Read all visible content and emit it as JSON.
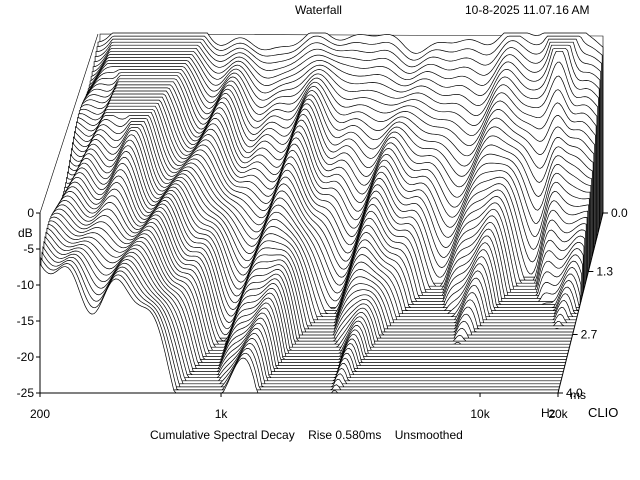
{
  "header": {
    "title": "Waterfall",
    "timestamp": "10-8-2025 11.07.16 AM"
  },
  "footer": {
    "caption": "Cumulative Spectral Decay    Rise 0.580ms    Unsmoothed",
    "brand": "CLIO"
  },
  "colors": {
    "background": "#ffffff",
    "ink": "#000000"
  },
  "chart_data": {
    "type": "area",
    "title": "Waterfall",
    "subtitle": "Cumulative Spectral Decay    Rise 0.580ms    Unsmoothed",
    "xlabel": "Hz",
    "ylabel": "dB",
    "zlabel": "ms",
    "x_scale": "log",
    "xlim": [
      200,
      20000
    ],
    "ylim": [
      -25,
      0
    ],
    "zlim": [
      0,
      4.0
    ],
    "x_ticks": [
      {
        "value": 200,
        "label": "200"
      },
      {
        "value": 1000,
        "label": "1k"
      },
      {
        "value": 10000,
        "label": "10k"
      },
      {
        "value": 20000,
        "label": "20k"
      }
    ],
    "x_unit_label": "Hz",
    "y_ticks": [
      {
        "value": 0,
        "label": "0"
      },
      {
        "value": -5,
        "label": "-5"
      },
      {
        "value": -10,
        "label": "-10"
      },
      {
        "value": -15,
        "label": "-15"
      },
      {
        "value": -20,
        "label": "-20"
      },
      {
        "value": -25,
        "label": "-25"
      }
    ],
    "z_ticks": [
      {
        "value": 0.0,
        "label": "0.0"
      },
      {
        "value": 1.3,
        "label": "1.3"
      },
      {
        "value": 2.7,
        "label": "2.7"
      },
      {
        "value": 4.0,
        "label": "4.0"
      }
    ],
    "z_unit_label": "ms",
    "slices": 60,
    "grid": false
  }
}
